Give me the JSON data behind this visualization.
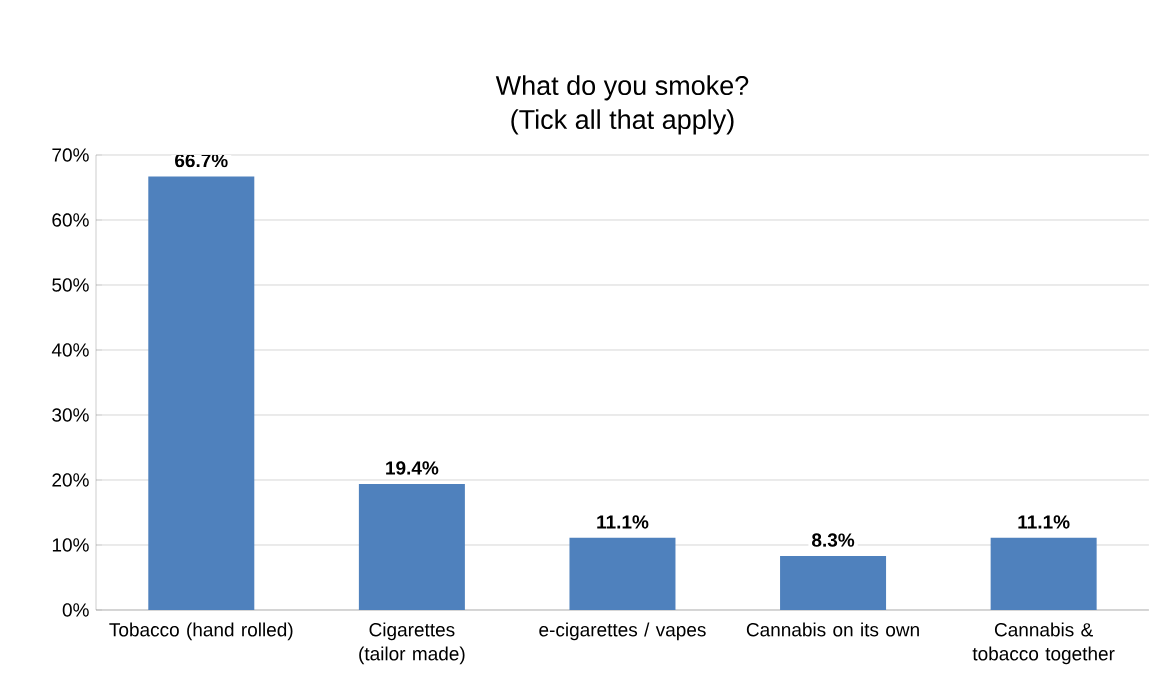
{
  "chart_data": {
    "type": "bar",
    "title": "What do you smoke?",
    "subtitle": "(Tick all that apply)",
    "categories": [
      "Tobacco (hand rolled)",
      "Cigarettes (tailor made)",
      "e-cigarettes / vapes",
      "Cannabis on its own",
      "Cannabis & tobacco together"
    ],
    "values": [
      66.7,
      19.4,
      11.1,
      8.3,
      11.1
    ],
    "value_labels": [
      "66.7%",
      "19.4%",
      "11.1%",
      "8.3%",
      "11.1%"
    ],
    "color": "#4f81bd",
    "ylim": [
      0,
      70
    ],
    "yticks": [
      {
        "value": 0,
        "label": "0%"
      },
      {
        "value": 10,
        "label": "10%"
      },
      {
        "value": 20,
        "label": "20%"
      },
      {
        "value": 30,
        "label": "30%"
      },
      {
        "value": 40,
        "label": "40%"
      },
      {
        "value": 50,
        "label": "50%"
      },
      {
        "value": 60,
        "label": "60%"
      },
      {
        "value": 70,
        "label": "70%"
      }
    ],
    "grid": "y"
  }
}
